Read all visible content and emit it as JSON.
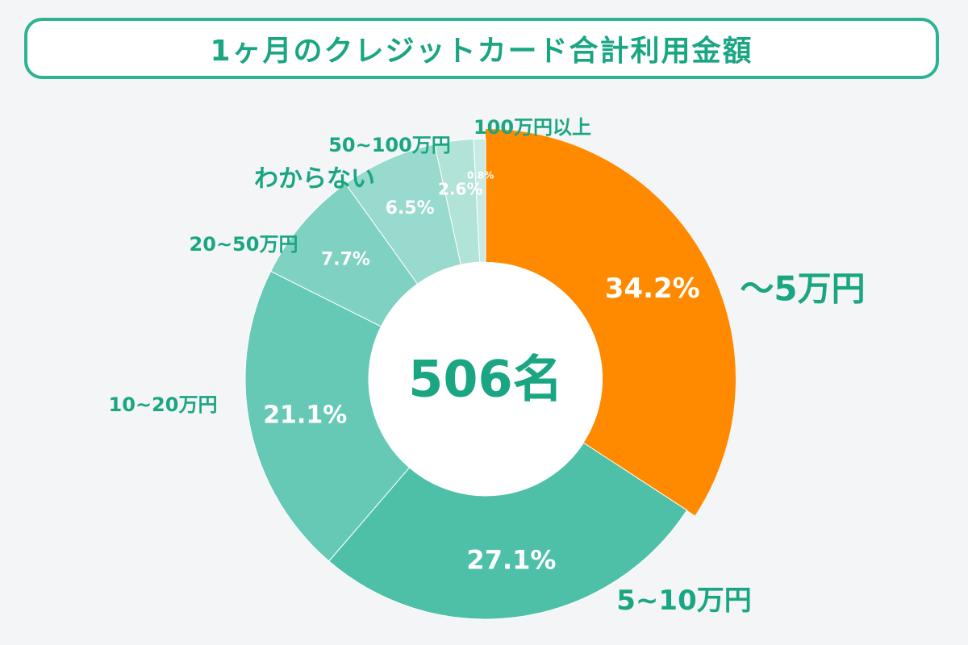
{
  "chart_data": {
    "type": "pie",
    "title": "1ヶ月のクレジットカード合計利用金額",
    "center_label": "506名",
    "unit": "%",
    "slices": [
      {
        "label": "〜5万円",
        "value": 34.2,
        "value_label": "34.2%",
        "color": "#ff8a00"
      },
      {
        "label": "5~10万円",
        "value": 27.1,
        "value_label": "27.1%",
        "color": "#4fc0a8"
      },
      {
        "label": "10~20万円",
        "value": 21.1,
        "value_label": "21.1%",
        "color": "#66c9b6"
      },
      {
        "label": "20~50万円",
        "value": 7.7,
        "value_label": "7.7%",
        "color": "#7fd2c2"
      },
      {
        "label": "わからない",
        "value": 6.5,
        "value_label": "6.5%",
        "color": "#98dacd"
      },
      {
        "label": "50~100万円",
        "value": 2.6,
        "value_label": "2.6%",
        "color": "#b1e3d9"
      },
      {
        "label": "100万円以上",
        "value": 0.8,
        "value_label": "0.8%",
        "color": "#c7ebe4"
      }
    ]
  }
}
